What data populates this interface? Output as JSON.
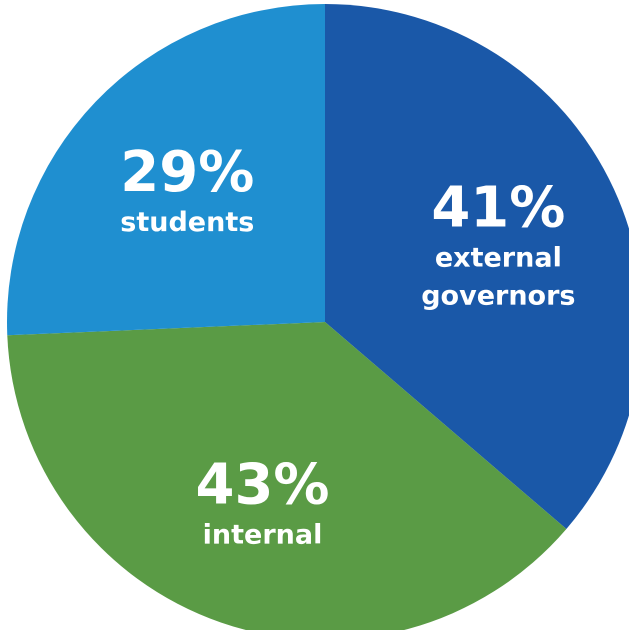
{
  "chart_data": {
    "type": "pie",
    "slices": [
      {
        "value": 41,
        "value_label": "41%",
        "label_lines": [
          "external",
          "governors"
        ],
        "color": "#1a58a8"
      },
      {
        "value": 43,
        "value_label": "43%",
        "label_lines": [
          "internal"
        ],
        "color": "#5a9b45"
      },
      {
        "value": 29,
        "value_label": "29%",
        "label_lines": [
          "students"
        ],
        "color": "#1f8fd0"
      }
    ],
    "legend": "none"
  }
}
